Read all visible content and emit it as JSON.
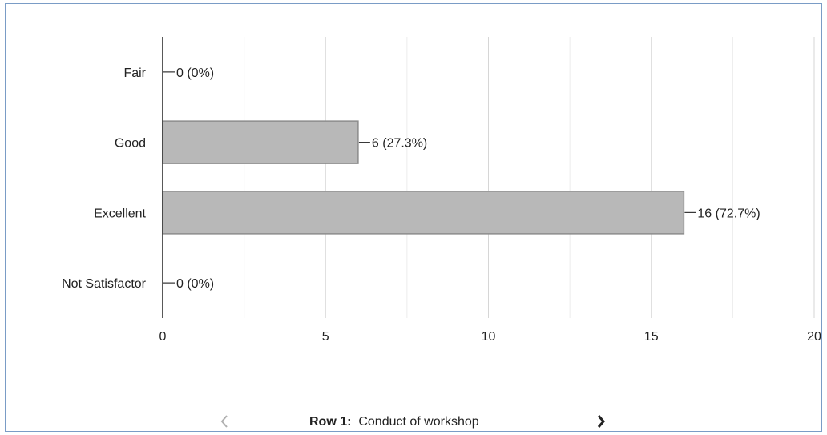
{
  "chart_data": {
    "type": "bar",
    "orientation": "horizontal",
    "categories": [
      "Fair",
      "Good",
      "Excellent",
      "Not Satisfactor"
    ],
    "values": [
      0,
      6,
      16,
      0
    ],
    "data_labels": [
      "0 (0%)",
      "6 (27.3%)",
      "16 (72.7%)",
      "0 (0%)"
    ],
    "xlim": [
      0,
      20
    ],
    "xticks": [
      "0",
      "5",
      "10",
      "15",
      "20"
    ],
    "grid": true,
    "bar_color": "#b8b8b8",
    "bar_border_color": "#8c8c8c"
  },
  "pager": {
    "row_prefix": "Row 1:",
    "row_title": "Conduct of workshop",
    "prev_icon": "chevron-left-icon",
    "next_icon": "chevron-right-icon",
    "prev_color": "#b0b0b0",
    "next_color": "#222222"
  }
}
